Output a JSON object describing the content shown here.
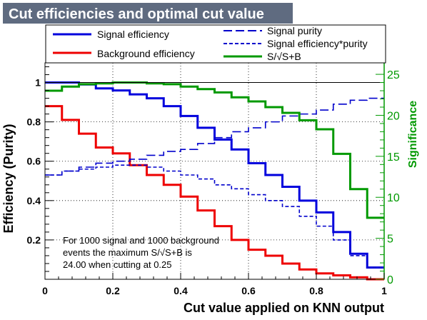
{
  "title": "Cut efficiencies and optimal cut value",
  "colors": {
    "title_bg": "#5f6b80",
    "title_fg": "#ffffff",
    "signal": "#0000dd",
    "background": "#ee0000",
    "significance": "#009900",
    "purity": "#0000cc",
    "frame": "#000000"
  },
  "legend": {
    "signal_efficiency": "Signal efficiency",
    "background_efficiency": "Background efficiency",
    "signal_purity": "Signal purity",
    "signal_eff_purity": "Signal efficiency*purity",
    "significance": "S/√S+B"
  },
  "annotation": {
    "line1": "For 1000 signal and 1000 background",
    "line2": "events the maximum S/√S+B is",
    "line3": "24.00 when cutting at  0.25"
  },
  "chart_data": {
    "type": "line",
    "title": "Cut efficiencies and optimal cut value",
    "xlabel": "Cut value applied on KNN output",
    "ylabel": "Efficiency (Purity)",
    "ylabel_right": "Significance",
    "xlim": [
      0,
      1
    ],
    "ylim": [
      0,
      1.1
    ],
    "ylim_right": [
      0,
      26.4
    ],
    "grid": true,
    "legend_position": "top",
    "x_ticks": [
      0,
      0.2,
      0.4,
      0.6,
      0.8,
      1
    ],
    "x_tick_labels": [
      "0",
      "0.2",
      "0.4",
      "0.6",
      "0.8",
      "1"
    ],
    "y_ticks": [
      0.2,
      0.4,
      0.6,
      0.8,
      1
    ],
    "y_tick_labels": [
      "0.2",
      "0.4",
      "0.6",
      "0.8",
      "1"
    ],
    "y_right_ticks": [
      0,
      5,
      10,
      15,
      20,
      25
    ],
    "y_right_tick_labels": [
      "0",
      "5",
      "10",
      "15",
      "20",
      "25"
    ],
    "bin_edges": [
      0,
      0.05,
      0.1,
      0.15,
      0.2,
      0.25,
      0.3,
      0.35,
      0.4,
      0.45,
      0.5,
      0.55,
      0.6,
      0.65,
      0.7,
      0.75,
      0.8,
      0.85,
      0.9,
      0.95,
      1.0
    ],
    "series": [
      {
        "name": "Signal efficiency",
        "axis": "left",
        "style": "solid",
        "values": [
          1.0,
          1.0,
          0.99,
          0.97,
          0.96,
          0.94,
          0.92,
          0.88,
          0.83,
          0.77,
          0.71,
          0.66,
          0.59,
          0.53,
          0.47,
          0.4,
          0.34,
          0.24,
          0.13,
          0.06
        ]
      },
      {
        "name": "Background efficiency",
        "axis": "left",
        "style": "solid",
        "values": [
          0.88,
          0.81,
          0.74,
          0.67,
          0.64,
          0.58,
          0.53,
          0.48,
          0.42,
          0.35,
          0.27,
          0.2,
          0.15,
          0.12,
          0.08,
          0.05,
          0.03,
          0.02,
          0.01,
          0.0
        ]
      },
      {
        "name": "Signal purity",
        "axis": "left",
        "style": "dashed",
        "values": [
          0.53,
          0.55,
          0.57,
          0.59,
          0.6,
          0.61,
          0.63,
          0.65,
          0.66,
          0.69,
          0.72,
          0.75,
          0.77,
          0.8,
          0.83,
          0.84,
          0.86,
          0.89,
          0.91,
          0.92
        ]
      },
      {
        "name": "Signal efficiency*purity",
        "axis": "left",
        "style": "dotted-dash",
        "values": [
          0.53,
          0.55,
          0.56,
          0.57,
          0.58,
          0.58,
          0.57,
          0.55,
          0.53,
          0.51,
          0.48,
          0.46,
          0.43,
          0.4,
          0.37,
          0.32,
          0.27,
          0.2,
          0.12,
          0.06
        ]
      },
      {
        "name": "S/√S+B",
        "axis": "right",
        "style": "solid",
        "values": [
          23.0,
          23.5,
          23.8,
          23.9,
          24.0,
          24.0,
          23.9,
          23.8,
          23.5,
          23.2,
          22.8,
          22.2,
          21.7,
          21.0,
          20.3,
          19.4,
          18.3,
          15.3,
          11.0,
          7.5
        ]
      }
    ]
  }
}
